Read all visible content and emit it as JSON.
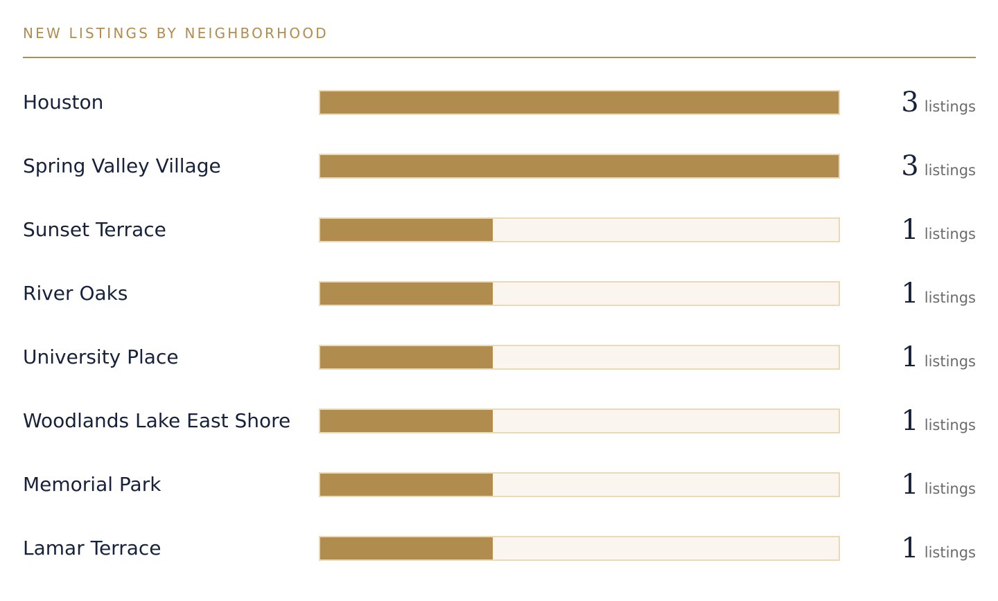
{
  "heading": "NEW LISTINGS BY NEIGHBORHOOD",
  "colors": {
    "accent": "#b08c4f",
    "track": "#faf6ef",
    "track_border": "#ead8b6",
    "text": "#16223b",
    "muted": "#6b6b6b"
  },
  "chart_data": {
    "type": "bar",
    "orientation": "horizontal",
    "categories": [
      "Houston",
      "Spring Valley Village",
      "Sunset Terrace",
      "River Oaks",
      "University Place",
      "Woodlands Lake East Shore",
      "Memorial Park",
      "Lamar Terrace"
    ],
    "values": [
      3,
      3,
      1,
      1,
      1,
      1,
      1,
      1
    ],
    "unit": "listings",
    "xlim": [
      0,
      3
    ],
    "grid": false,
    "legend": "none"
  }
}
